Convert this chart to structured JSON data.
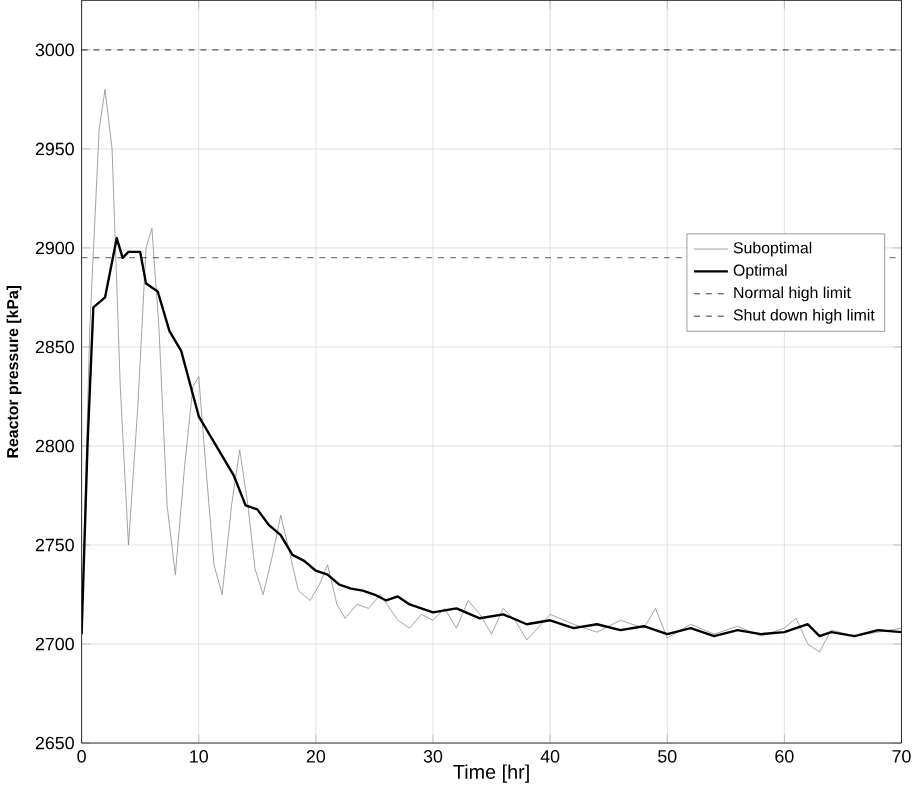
{
  "chart_data": {
    "type": "line",
    "xlabel": "Time [hr]",
    "ylabel": "Reactor pressure [kPa]",
    "xlim": [
      0,
      70
    ],
    "ylim": [
      2650,
      3025
    ],
    "xticks": [
      0,
      10,
      20,
      30,
      40,
      50,
      60,
      70
    ],
    "yticks": [
      2650,
      2700,
      2750,
      2800,
      2850,
      2900,
      2950,
      3000
    ],
    "grid": true,
    "legend": "right",
    "series": [
      {
        "name": "Suboptimal",
        "color": "#8c8c8c",
        "x": [
          0,
          0.7,
          1.5,
          2,
          2.6,
          3.3,
          4,
          4.8,
          5.5,
          6,
          6.6,
          7.3,
          8,
          8.8,
          9.5,
          10,
          10.6,
          11.3,
          12,
          12.8,
          13.5,
          14.2,
          14.8,
          15.5,
          16.3,
          17,
          17.8,
          18.5,
          19.5,
          20.3,
          21,
          21.8,
          22.5,
          23.5,
          24.5,
          25.5,
          27,
          28,
          29,
          30,
          31,
          32,
          33,
          34,
          35,
          36,
          37,
          38,
          40,
          42,
          44,
          46,
          48,
          49,
          50,
          52,
          54,
          56,
          58,
          60,
          61,
          62,
          63,
          64,
          66,
          68,
          70
        ],
        "values": [
          2705,
          2860,
          2960,
          2980,
          2950,
          2830,
          2750,
          2820,
          2900,
          2910,
          2860,
          2770,
          2735,
          2790,
          2830,
          2835,
          2790,
          2740,
          2725,
          2770,
          2798,
          2770,
          2738,
          2725,
          2745,
          2765,
          2745,
          2727,
          2722,
          2730,
          2740,
          2720,
          2713,
          2720,
          2718,
          2725,
          2712,
          2708,
          2715,
          2712,
          2718,
          2708,
          2722,
          2715,
          2705,
          2718,
          2712,
          2702,
          2715,
          2710,
          2706,
          2712,
          2708,
          2718,
          2703,
          2710,
          2705,
          2709,
          2704,
          2708,
          2713,
          2700,
          2696,
          2707,
          2704,
          2706,
          2708
        ]
      },
      {
        "name": "Optimal",
        "color": "#000000",
        "x": [
          0,
          0.5,
          1,
          2,
          2.5,
          3,
          3.5,
          4,
          5,
          5.5,
          6.5,
          7.5,
          8.5,
          10,
          11,
          12,
          13,
          14,
          15,
          16,
          17,
          18,
          19,
          20,
          21,
          22,
          23,
          24,
          25,
          26,
          27,
          28,
          29,
          30,
          32,
          34,
          36,
          38,
          40,
          42,
          44,
          46,
          48,
          50,
          52,
          54,
          56,
          58,
          60,
          62,
          63,
          64,
          66,
          68,
          70
        ],
        "values": [
          2705,
          2800,
          2870,
          2875,
          2890,
          2905,
          2895,
          2898,
          2898,
          2882,
          2878,
          2858,
          2848,
          2815,
          2805,
          2795,
          2785,
          2770,
          2768,
          2760,
          2755,
          2745,
          2742,
          2737,
          2735,
          2730,
          2728,
          2727,
          2725,
          2722,
          2724,
          2720,
          2718,
          2716,
          2718,
          2713,
          2715,
          2710,
          2712,
          2708,
          2710,
          2707,
          2709,
          2705,
          2708,
          2704,
          2707,
          2705,
          2706,
          2710,
          2704,
          2706,
          2704,
          2707,
          2706
        ]
      },
      {
        "name": "Normal high limit",
        "color": "#000000",
        "line_style": "dashed",
        "x": [
          0,
          70
        ],
        "values": [
          2895,
          2895
        ]
      },
      {
        "name": "Shut down high limit",
        "color": "#000000",
        "line_style": "dashed",
        "x": [
          0,
          70
        ],
        "values": [
          3000,
          3000
        ]
      }
    ]
  }
}
